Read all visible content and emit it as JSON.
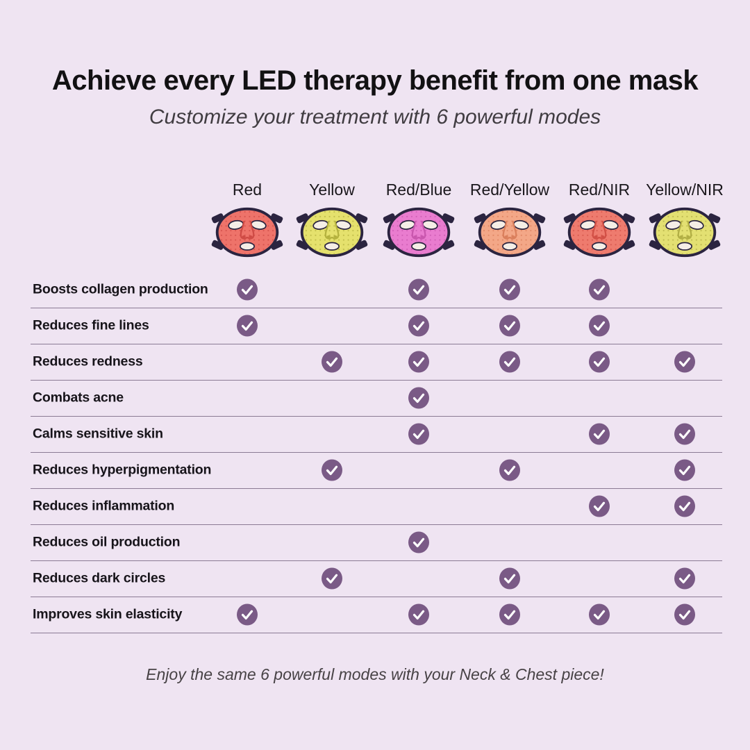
{
  "header": {
    "title": "Achieve every LED therapy benefit from one mask",
    "subtitle": "Customize your treatment with 6 powerful modes"
  },
  "footer": {
    "note": "Enjoy the same 6 powerful modes with your Neck & Chest piece!"
  },
  "colors": {
    "background": "#efe4f2",
    "check_circle": "#7a5a86",
    "check_mark": "#ffffff",
    "row_line": "#8a7a94",
    "mask_outline": "#2b2440",
    "mask_hole_fill": "#f5eee6",
    "title_text": "#121113",
    "subtitle_text": "#403c41",
    "row_label_text": "#17141a"
  },
  "icons": {
    "check": "circled white checkmark on purple disc",
    "mask": "LED face mask illustration with side straps, eye, nose and mouth openings"
  },
  "chart_data": {
    "type": "table",
    "title": "Achieve every LED therapy benefit from one mask",
    "subtitle": "Customize your treatment with 6 powerful modes",
    "columns": [
      {
        "label": "Red",
        "mask_color": "#ee736a",
        "mask_shade": "#cf4b45"
      },
      {
        "label": "Yellow",
        "mask_color": "#e5e16d",
        "mask_shade": "#b5b23e"
      },
      {
        "label": "Red/Blue",
        "mask_color": "#e97ccf",
        "mask_shade": "#c957ae"
      },
      {
        "label": "Red/Yellow",
        "mask_color": "#f3a787",
        "mask_shade": "#da7f5c"
      },
      {
        "label": "Red/NIR",
        "mask_color": "#ee7b6e",
        "mask_shade": "#d25046"
      },
      {
        "label": "Yellow/NIR",
        "mask_color": "#e3e072",
        "mask_shade": "#b2af45"
      }
    ],
    "rows": [
      {
        "label": "Boosts collagen production",
        "checks": [
          true,
          false,
          true,
          true,
          true,
          false
        ]
      },
      {
        "label": "Reduces fine lines",
        "checks": [
          true,
          false,
          true,
          true,
          true,
          false
        ]
      },
      {
        "label": "Reduces redness",
        "checks": [
          false,
          true,
          true,
          true,
          true,
          true
        ]
      },
      {
        "label": "Combats acne",
        "checks": [
          false,
          false,
          true,
          false,
          false,
          false
        ]
      },
      {
        "label": "Calms sensitive skin",
        "checks": [
          false,
          false,
          true,
          false,
          true,
          true
        ]
      },
      {
        "label": "Reduces hyperpigmentation",
        "checks": [
          false,
          true,
          false,
          true,
          false,
          true
        ]
      },
      {
        "label": "Reduces inflammation",
        "checks": [
          false,
          false,
          false,
          false,
          true,
          true
        ]
      },
      {
        "label": "Reduces oil production",
        "checks": [
          false,
          false,
          true,
          false,
          false,
          false
        ]
      },
      {
        "label": "Reduces dark circles",
        "checks": [
          false,
          true,
          false,
          true,
          false,
          true
        ]
      },
      {
        "label": "Improves skin elasticity",
        "checks": [
          true,
          false,
          true,
          true,
          true,
          true
        ]
      }
    ]
  }
}
